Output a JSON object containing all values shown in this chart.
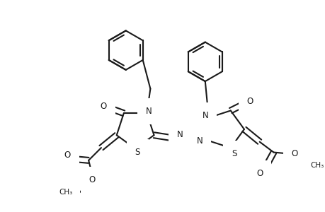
{
  "bg_color": "#ffffff",
  "line_color": "#1a1a1a",
  "line_width": 1.5,
  "font_size": 8.5,
  "figsize": [
    4.6,
    3.0
  ],
  "dpi": 100,
  "xlim": [
    0,
    460
  ],
  "ylim": [
    0,
    300
  ]
}
